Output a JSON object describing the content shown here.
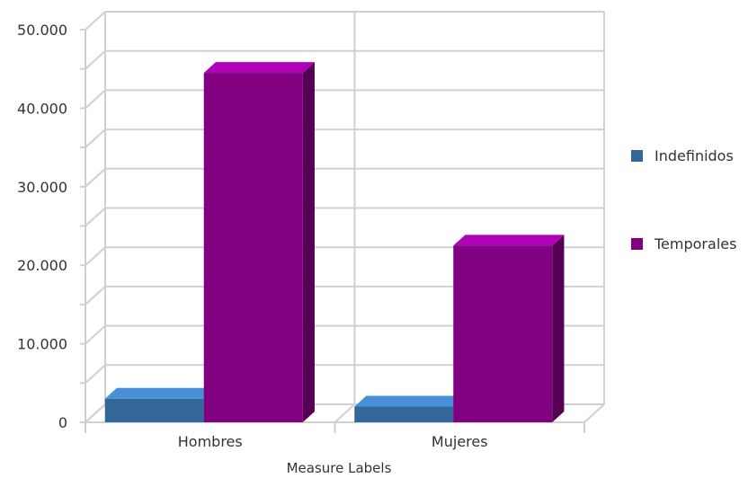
{
  "chart_data": {
    "type": "bar",
    "title": "",
    "xlabel": "Measure Labels",
    "ylabel": "",
    "categories": [
      "Hombres",
      "Mujeres"
    ],
    "series": [
      {
        "name": "Indefinidos",
        "values": [
          3000,
          2000
        ],
        "color": "#336699",
        "top_color": "#4a90d9",
        "side_color": "#22466b"
      },
      {
        "name": "Temporales",
        "values": [
          44500,
          22500
        ],
        "color": "#800080",
        "top_color": "#b000b8",
        "side_color": "#550055"
      }
    ],
    "yticks": [
      "0",
      "10.000",
      "20.000",
      "30.000",
      "40.000",
      "50.000"
    ],
    "ytick_values": [
      0,
      10000,
      20000,
      30000,
      40000,
      50000
    ],
    "ylim": [
      0,
      50000
    ],
    "grid": true,
    "style": "3d",
    "legend_position": "right"
  }
}
